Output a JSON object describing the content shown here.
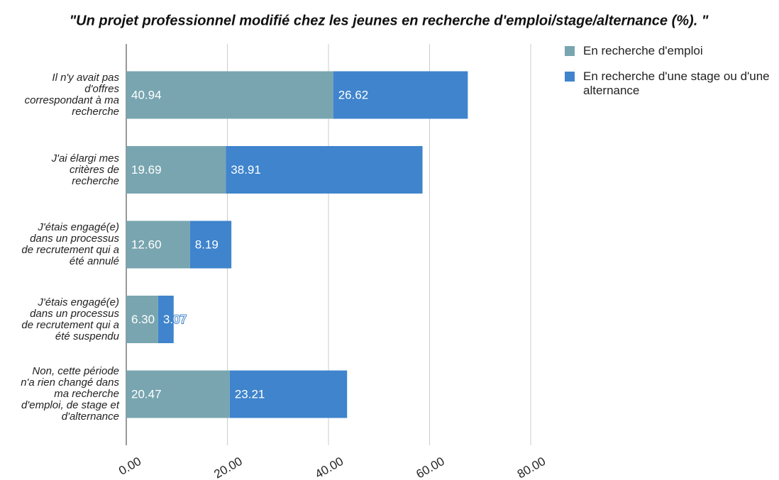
{
  "chart_data": {
    "type": "stacked_bar_horizontal",
    "title": "\"Un projet professionnel modifié chez les jeunes en recherche d'emploi/stage/alternance (%). \"",
    "categories": [
      "Il n'y avait pas d'offres correspondant à ma recherche",
      "J'ai élargi mes critères de recherche",
      "J'étais engagé(e) dans un processus de recrutement qui a été annulé",
      "J'étais engagé(e) dans un processus de recrutement qui a été suspendu",
      "Non, cette période n'a rien changé dans ma recherche d'emploi, de stage et d'alternance"
    ],
    "series": [
      {
        "name": "En recherche d'emploi",
        "color": "#78a5b0",
        "values": [
          40.94,
          19.69,
          12.6,
          6.3,
          20.47
        ],
        "value_labels": [
          "40.94",
          "19.69",
          "12.60",
          "6.30",
          "20.47"
        ]
      },
      {
        "name": "En recherche d'une stage ou d'une alternance",
        "color": "#3f84cc",
        "values": [
          26.62,
          38.91,
          8.19,
          3.07,
          23.21
        ],
        "value_labels": [
          "26.62",
          "38.91",
          "8.19",
          "3.07",
          "23.21"
        ]
      }
    ],
    "xlim": [
      0,
      80
    ],
    "xticks": [
      {
        "value": 0,
        "label": "0.00"
      },
      {
        "value": 20,
        "label": "20.00"
      },
      {
        "value": 40,
        "label": "40.00"
      },
      {
        "value": 60,
        "label": "60.00"
      },
      {
        "value": 80,
        "label": "80.00"
      }
    ],
    "grid": true,
    "legend": "right"
  }
}
